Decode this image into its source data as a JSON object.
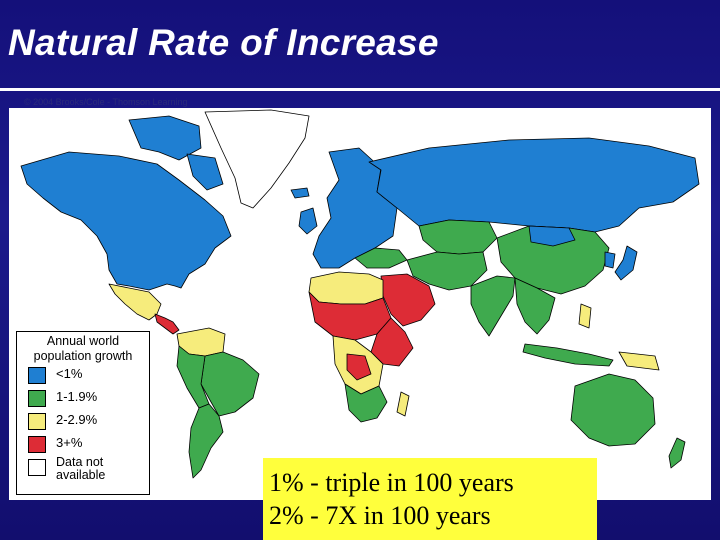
{
  "title": "Natural Rate of Increase",
  "credit": "© 2004 Brooks/Cole - Thomson Learning",
  "legend": {
    "title": "Annual world population growth",
    "items": [
      {
        "label": "<1%",
        "color": "#1f7fd2"
      },
      {
        "label": "1-1.9%",
        "color": "#3faa4e"
      },
      {
        "label": "2-2.9%",
        "color": "#f6ec7c"
      },
      {
        "label": "3+%",
        "color": "#dd2c36"
      },
      {
        "label": "Data not available",
        "color": "#ffffff"
      }
    ]
  },
  "callout": {
    "line1": "1% - triple in 100 years",
    "line2": "2% - 7X in 100 years"
  },
  "colors": {
    "background": "#14107a",
    "low_growth": "#1f7fd2",
    "medium_growth": "#3faa4e",
    "high_growth": "#f6ec7c",
    "very_high_growth": "#dd2c36",
    "callout_fill": "#ffff3c"
  }
}
